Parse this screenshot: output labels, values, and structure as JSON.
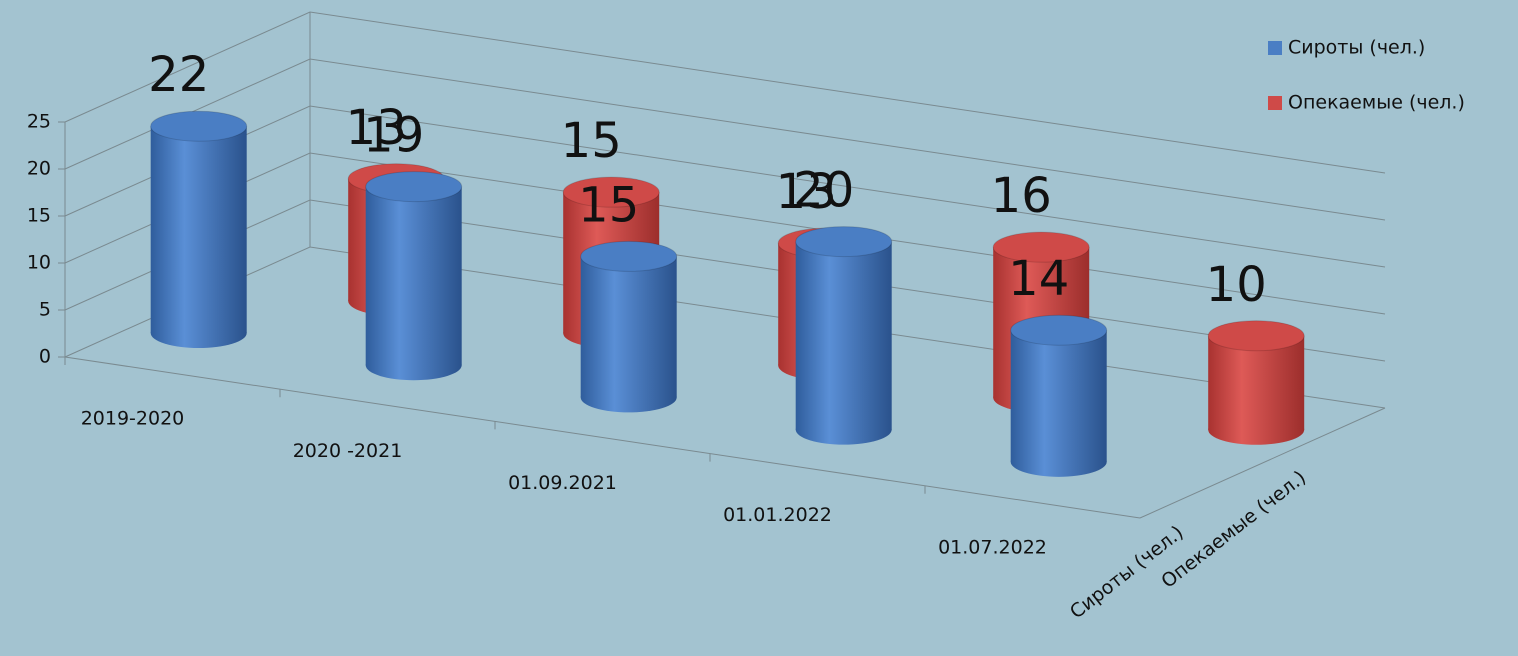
{
  "chart_data": {
    "type": "bar3d",
    "categories": [
      "2019-2020",
      "2020 -2021",
      "01.09.2021",
      "01.01.2022",
      "01.07.2022"
    ],
    "series": [
      {
        "name": "Сироты (чел.)",
        "color": "#4a7ec4",
        "values": [
          22,
          19,
          15,
          20,
          14
        ]
      },
      {
        "name": "Опекаемые (чел.)",
        "color": "#cf4a48",
        "values": [
          13,
          15,
          13,
          16,
          10
        ]
      }
    ],
    "ylim": [
      0,
      25
    ],
    "yticks": [
      0,
      5,
      10,
      15,
      20,
      25
    ],
    "grid": true,
    "legend": "top-right"
  }
}
